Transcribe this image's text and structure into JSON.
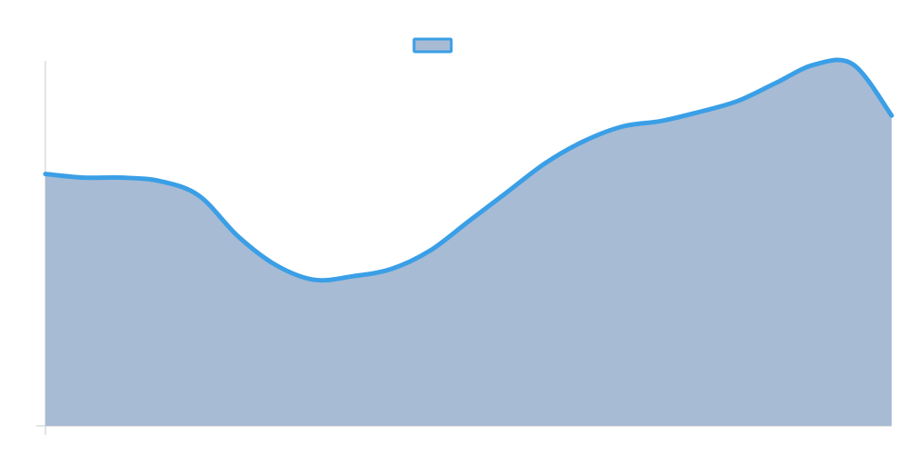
{
  "chart_data": {
    "type": "area",
    "x": [
      0,
      1,
      2,
      3,
      4,
      5,
      6,
      7,
      8,
      9,
      10,
      11,
      12,
      13,
      14,
      15,
      16,
      17,
      18,
      19,
      20,
      21,
      22
    ],
    "values": [
      0.69,
      0.68,
      0.68,
      0.67,
      0.63,
      0.52,
      0.44,
      0.4,
      0.41,
      0.43,
      0.48,
      0.56,
      0.64,
      0.72,
      0.78,
      0.82,
      0.835,
      0.86,
      0.89,
      0.94,
      0.99,
      0.99,
      0.85
    ],
    "ylim": [
      0,
      1
    ],
    "grid": false,
    "legend": "top-center",
    "title": "",
    "xlabel": "",
    "ylabel": "",
    "series_color": "#3a9fe6",
    "fill_color": "#a8bbd4"
  }
}
